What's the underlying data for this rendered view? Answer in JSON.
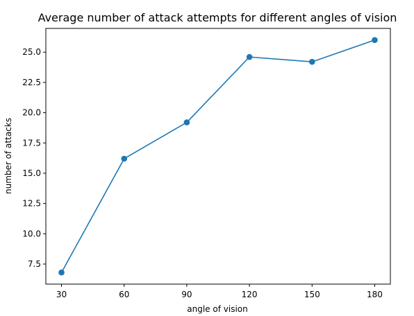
{
  "chart_data": {
    "type": "line",
    "title": "Average number of attack attempts for different angles of vision",
    "xlabel": "angle of vision",
    "ylabel": "number of attacks",
    "x": [
      30,
      60,
      90,
      120,
      150,
      180
    ],
    "series": [
      {
        "values": [
          6.8,
          16.2,
          19.2,
          24.6,
          24.2,
          26.0
        ],
        "color": "#1f77b4",
        "marker": "circle"
      }
    ],
    "xticks": [
      30,
      60,
      90,
      120,
      150,
      180
    ],
    "yticks": [
      7.5,
      10.0,
      12.5,
      15.0,
      17.5,
      20.0,
      22.5,
      25.0
    ],
    "ytick_labels": [
      "7.5",
      "10.0",
      "12.5",
      "15.0",
      "17.5",
      "20.0",
      "22.5",
      "25.0"
    ],
    "xlim": [
      22.5,
      187.5
    ],
    "ylim": [
      5.84,
      26.96
    ],
    "grid": false,
    "legend": "none"
  }
}
